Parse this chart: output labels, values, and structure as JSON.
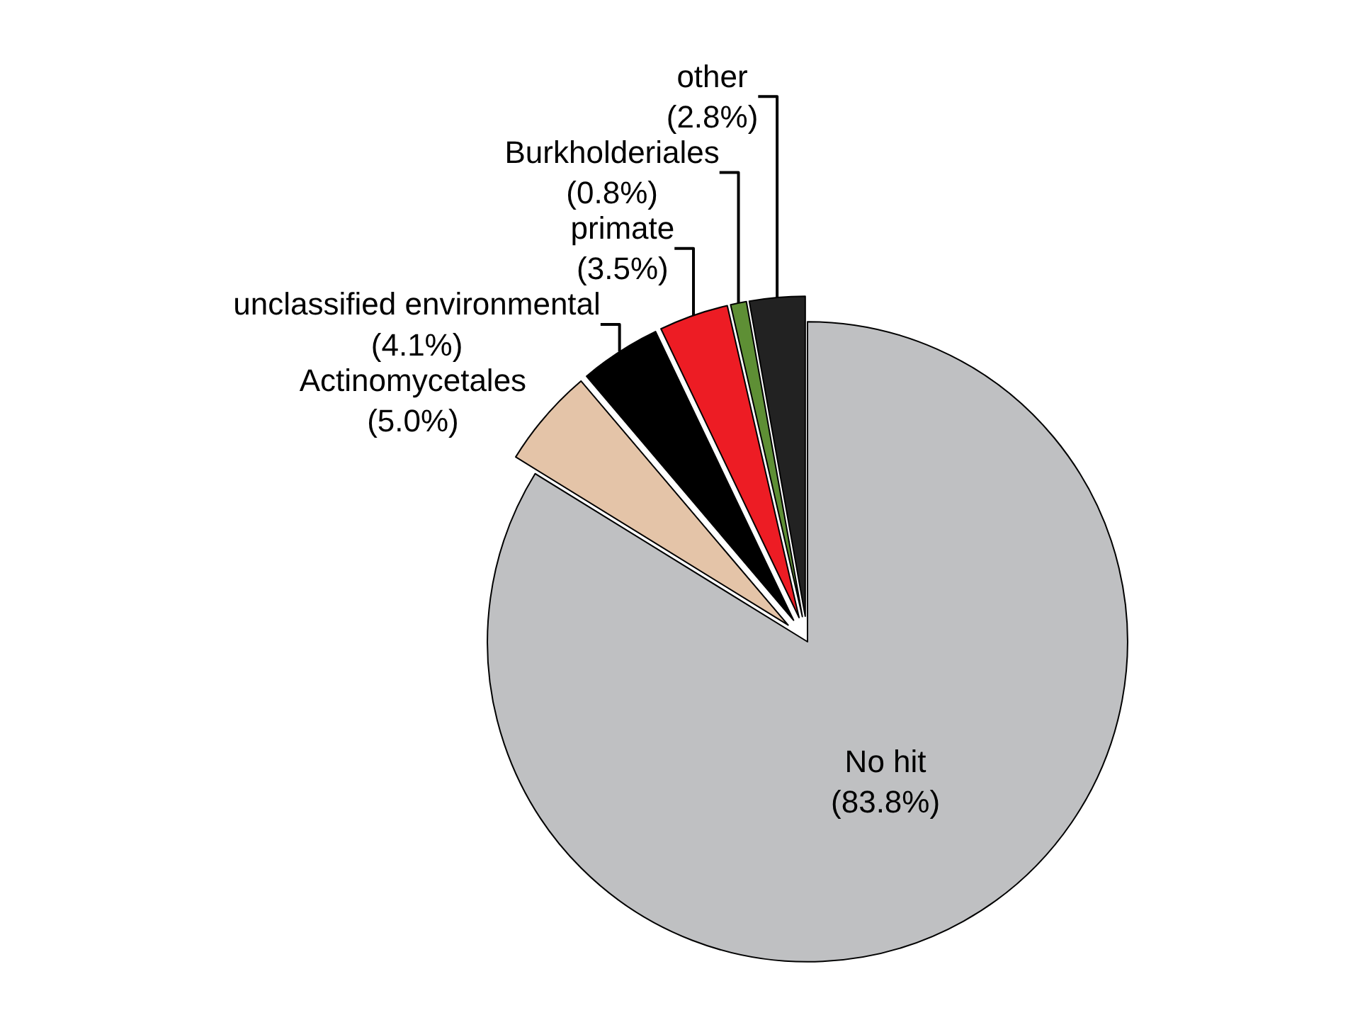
{
  "chart_data": {
    "type": "pie",
    "categories": [
      "No hit",
      "Actinomycetales",
      "unclassified environmental",
      "primate",
      "Burkholderiales",
      "other"
    ],
    "values": [
      83.8,
      5.0,
      4.1,
      3.5,
      0.8,
      2.8
    ],
    "value_labels": [
      "(83.8%)",
      "(5.0%)",
      "(4.1%)",
      "(3.5%)",
      "(0.8%)",
      "(2.8%)"
    ],
    "colors": [
      "#bfc0c2",
      "#e4c4a8",
      "#000000",
      "#ed1c24",
      "#5e8f35",
      "#222222"
    ],
    "legend": false
  }
}
